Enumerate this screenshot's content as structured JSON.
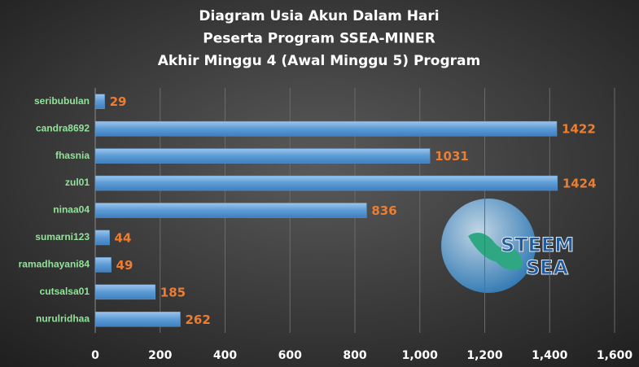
{
  "chart_data": {
    "type": "barh",
    "title": [
      "Diagram  Usia Akun  Dalam  Hari",
      "Peserta  Program  SSEA-MINER",
      "Akhir  Minggu  4 (Awal  Minggu  5) Program"
    ],
    "categories": [
      "seribubulan",
      "candra8692",
      "fhasnia",
      "zul01",
      "ninaa04",
      "sumarni123",
      "ramadhayani84",
      "cutsalsa01",
      "nurulridhaa"
    ],
    "values": [
      29,
      1422,
      1031,
      1424,
      836,
      44,
      49,
      185,
      262
    ],
    "color": "#5b9bd5",
    "label_color": "#ed7d31",
    "category_color": "#92e39a",
    "xlim": [
      0,
      1600
    ],
    "xticks": [
      0,
      200,
      400,
      600,
      800,
      {
        "value": 1000,
        "label": "1,000"
      },
      {
        "value": 1200,
        "label": "1,200"
      },
      {
        "value": 1400,
        "label": "1,400"
      },
      {
        "value": 1600,
        "label": "1,600"
      }
    ],
    "grid": true
  },
  "logo": {
    "line1": "STEEM",
    "line2": "SEA"
  }
}
